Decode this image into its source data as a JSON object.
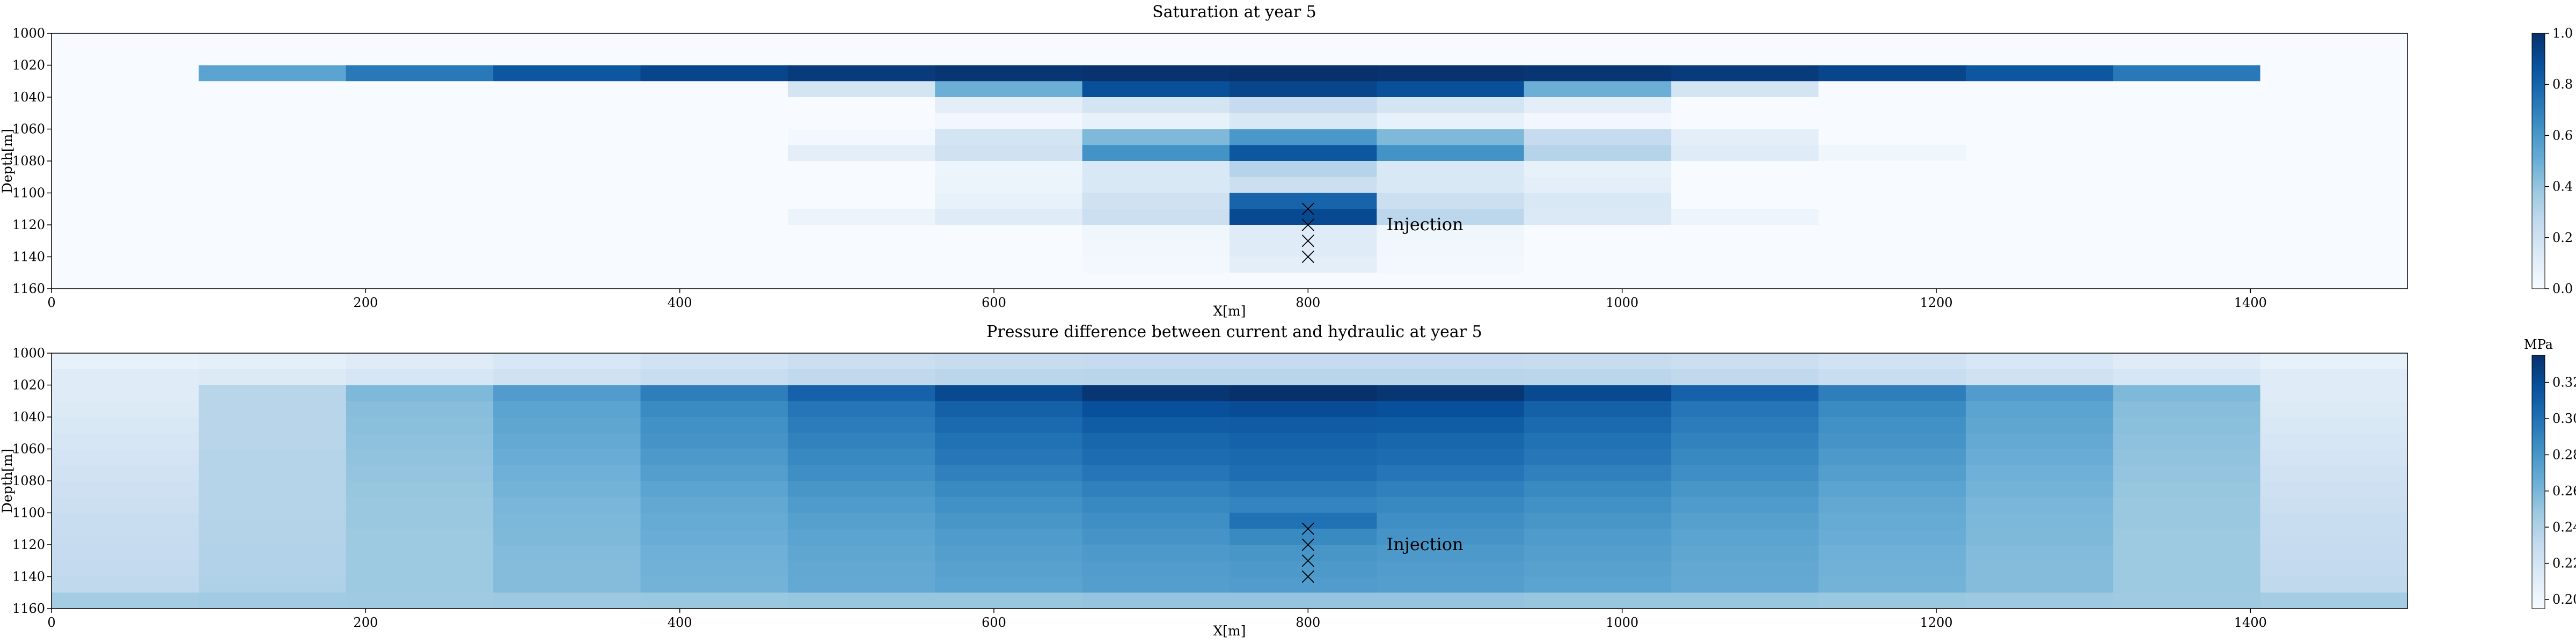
{
  "chart_data": [
    {
      "type": "heatmap",
      "title": "Saturation at year 5",
      "xlabel": "X[m]",
      "ylabel": "Depth[m]",
      "xlim": [
        0,
        1500
      ],
      "ylim": [
        1160,
        1000
      ],
      "xticks": [
        "0",
        "200",
        "400",
        "600",
        "800",
        "1000",
        "1200",
        "1400"
      ],
      "xtick_values": [
        0,
        200,
        400,
        600,
        800,
        1000,
        1200,
        1400
      ],
      "yticks": [
        "1000",
        "1020",
        "1040",
        "1060",
        "1080",
        "1100",
        "1120",
        "1140",
        "1160"
      ],
      "ytick_values": [
        1000,
        1020,
        1040,
        1060,
        1080,
        1100,
        1120,
        1140,
        1160
      ],
      "cell_width_m": 93.75,
      "cell_height_m": 10,
      "colorbar": {
        "min": 0.0,
        "max": 1.0,
        "unit": "",
        "ticks": [
          "0.0",
          "0.2",
          "0.4",
          "0.6",
          "0.8",
          "1.0"
        ],
        "tick_values": [
          0.0,
          0.2,
          0.4,
          0.6,
          0.8,
          1.0
        ]
      },
      "values": [
        [
          0.0,
          0.0,
          0.0,
          0.0,
          0.0,
          0.0,
          0.0,
          0.0,
          0.0,
          0.0,
          0.0,
          0.0,
          0.0,
          0.0,
          0.0,
          0.0
        ],
        [
          0.0,
          0.0,
          0.0,
          0.0,
          0.0,
          0.0,
          0.0,
          0.0,
          0.0,
          0.0,
          0.0,
          0.0,
          0.0,
          0.0,
          0.0,
          0.0
        ],
        [
          0.0,
          0.55,
          0.72,
          0.85,
          0.92,
          0.96,
          0.98,
          0.99,
          1.0,
          0.99,
          0.98,
          0.96,
          0.92,
          0.85,
          0.72,
          0.0
        ],
        [
          0.0,
          0.0,
          0.0,
          0.0,
          0.0,
          0.18,
          0.5,
          0.88,
          0.92,
          0.88,
          0.5,
          0.18,
          0.0,
          0.0,
          0.0,
          0.0
        ],
        [
          0.0,
          0.0,
          0.0,
          0.0,
          0.0,
          0.0,
          0.1,
          0.18,
          0.25,
          0.18,
          0.1,
          0.0,
          0.0,
          0.0,
          0.0,
          0.0
        ],
        [
          0.0,
          0.0,
          0.0,
          0.0,
          0.0,
          0.0,
          0.03,
          0.08,
          0.15,
          0.08,
          0.03,
          0.0,
          0.0,
          0.0,
          0.0,
          0.0
        ],
        [
          0.0,
          0.0,
          0.0,
          0.0,
          0.0,
          0.02,
          0.18,
          0.45,
          0.6,
          0.45,
          0.25,
          0.1,
          0.0,
          0.0,
          0.0,
          0.0
        ],
        [
          0.0,
          0.0,
          0.0,
          0.0,
          0.0,
          0.1,
          0.2,
          0.62,
          0.85,
          0.62,
          0.3,
          0.12,
          0.04,
          0.0,
          0.0,
          0.0
        ],
        [
          0.0,
          0.0,
          0.0,
          0.0,
          0.0,
          0.0,
          0.05,
          0.15,
          0.3,
          0.15,
          0.08,
          0.0,
          0.0,
          0.0,
          0.0,
          0.0
        ],
        [
          0.0,
          0.0,
          0.0,
          0.0,
          0.0,
          0.0,
          0.06,
          0.15,
          0.22,
          0.15,
          0.1,
          0.0,
          0.0,
          0.0,
          0.0,
          0.0
        ],
        [
          0.0,
          0.0,
          0.0,
          0.0,
          0.0,
          0.0,
          0.08,
          0.2,
          0.8,
          0.22,
          0.15,
          0.0,
          0.0,
          0.0,
          0.0,
          0.0
        ],
        [
          0.0,
          0.0,
          0.0,
          0.0,
          0.0,
          0.06,
          0.12,
          0.22,
          0.9,
          0.28,
          0.14,
          0.05,
          0.0,
          0.0,
          0.0,
          0.0
        ],
        [
          0.0,
          0.0,
          0.0,
          0.0,
          0.0,
          0.0,
          0.0,
          0.04,
          0.12,
          0.04,
          0.0,
          0.0,
          0.0,
          0.0,
          0.0,
          0.0
        ],
        [
          0.0,
          0.0,
          0.0,
          0.0,
          0.0,
          0.0,
          0.0,
          0.03,
          0.12,
          0.03,
          0.0,
          0.0,
          0.0,
          0.0,
          0.0,
          0.0
        ],
        [
          0.0,
          0.0,
          0.0,
          0.0,
          0.0,
          0.0,
          0.0,
          0.02,
          0.1,
          0.02,
          0.0,
          0.0,
          0.0,
          0.0,
          0.0,
          0.0
        ],
        [
          0.0,
          0.0,
          0.0,
          0.0,
          0.0,
          0.0,
          0.0,
          0.0,
          0.0,
          0.0,
          0.0,
          0.0,
          0.0,
          0.0,
          0.0,
          0.0
        ]
      ],
      "injection_points": [
        {
          "x": 800,
          "y": 1110
        },
        {
          "x": 800,
          "y": 1120
        },
        {
          "x": 800,
          "y": 1130
        },
        {
          "x": 800,
          "y": 1140
        }
      ],
      "annotation": {
        "text": "Injection",
        "x": 850,
        "y": 1120
      }
    },
    {
      "type": "heatmap",
      "title": "Pressure difference between current and hydraulic at year 5",
      "xlabel": "X[m]",
      "ylabel": "Depth[m]",
      "xlim": [
        0,
        1500
      ],
      "ylim": [
        1160,
        1000
      ],
      "xticks": [
        "0",
        "200",
        "400",
        "600",
        "800",
        "1000",
        "1200",
        "1400"
      ],
      "xtick_values": [
        0,
        200,
        400,
        600,
        800,
        1000,
        1200,
        1400
      ],
      "yticks": [
        "1000",
        "1020",
        "1040",
        "1060",
        "1080",
        "1100",
        "1120",
        "1140",
        "1160"
      ],
      "ytick_values": [
        1000,
        1020,
        1040,
        1060,
        1080,
        1100,
        1120,
        1140,
        1160
      ],
      "cell_width_m": 93.75,
      "cell_height_m": 10,
      "colorbar": {
        "min": 0.195,
        "max": 0.335,
        "unit": "MPa",
        "ticks": [
          "0.20",
          "0.22",
          "0.24",
          "0.26",
          "0.28",
          "0.30",
          "0.32"
        ],
        "tick_values": [
          0.2,
          0.22,
          0.24,
          0.26,
          0.28,
          0.3,
          0.32
        ]
      },
      "values": [
        [
          0.206,
          0.208,
          0.212,
          0.217,
          0.222,
          0.226,
          0.229,
          0.23,
          0.23,
          0.23,
          0.229,
          0.226,
          0.222,
          0.217,
          0.212,
          0.206
        ],
        [
          0.212,
          0.214,
          0.218,
          0.223,
          0.228,
          0.232,
          0.235,
          0.236,
          0.236,
          0.236,
          0.235,
          0.232,
          0.228,
          0.223,
          0.218,
          0.212
        ],
        [
          0.212,
          0.236,
          0.258,
          0.276,
          0.293,
          0.308,
          0.322,
          0.332,
          0.335,
          0.332,
          0.322,
          0.308,
          0.293,
          0.276,
          0.258,
          0.212
        ],
        [
          0.214,
          0.236,
          0.255,
          0.272,
          0.286,
          0.298,
          0.309,
          0.318,
          0.32,
          0.318,
          0.309,
          0.298,
          0.286,
          0.272,
          0.255,
          0.214
        ],
        [
          0.216,
          0.236,
          0.254,
          0.27,
          0.283,
          0.294,
          0.304,
          0.311,
          0.312,
          0.311,
          0.304,
          0.294,
          0.283,
          0.27,
          0.254,
          0.216
        ],
        [
          0.218,
          0.236,
          0.253,
          0.268,
          0.281,
          0.291,
          0.3,
          0.306,
          0.308,
          0.306,
          0.3,
          0.291,
          0.281,
          0.268,
          0.253,
          0.218
        ],
        [
          0.22,
          0.237,
          0.252,
          0.266,
          0.278,
          0.288,
          0.297,
          0.303,
          0.305,
          0.303,
          0.297,
          0.288,
          0.278,
          0.266,
          0.252,
          0.22
        ],
        [
          0.222,
          0.237,
          0.251,
          0.264,
          0.275,
          0.284,
          0.292,
          0.298,
          0.302,
          0.298,
          0.292,
          0.284,
          0.275,
          0.264,
          0.251,
          0.222
        ],
        [
          0.224,
          0.237,
          0.25,
          0.262,
          0.272,
          0.28,
          0.287,
          0.292,
          0.295,
          0.292,
          0.287,
          0.28,
          0.272,
          0.262,
          0.25,
          0.224
        ],
        [
          0.226,
          0.237,
          0.249,
          0.26,
          0.269,
          0.277,
          0.283,
          0.288,
          0.29,
          0.288,
          0.283,
          0.277,
          0.269,
          0.26,
          0.249,
          0.226
        ],
        [
          0.228,
          0.238,
          0.249,
          0.259,
          0.267,
          0.274,
          0.28,
          0.284,
          0.3,
          0.284,
          0.28,
          0.274,
          0.267,
          0.259,
          0.249,
          0.228
        ],
        [
          0.229,
          0.238,
          0.248,
          0.258,
          0.266,
          0.272,
          0.277,
          0.281,
          0.287,
          0.281,
          0.277,
          0.272,
          0.266,
          0.258,
          0.248,
          0.229
        ],
        [
          0.23,
          0.239,
          0.248,
          0.257,
          0.264,
          0.27,
          0.275,
          0.278,
          0.28,
          0.278,
          0.275,
          0.27,
          0.264,
          0.257,
          0.248,
          0.23
        ],
        [
          0.231,
          0.239,
          0.248,
          0.256,
          0.263,
          0.269,
          0.273,
          0.276,
          0.278,
          0.276,
          0.273,
          0.269,
          0.263,
          0.256,
          0.248,
          0.231
        ],
        [
          0.232,
          0.24,
          0.248,
          0.256,
          0.262,
          0.268,
          0.272,
          0.275,
          0.276,
          0.275,
          0.272,
          0.268,
          0.262,
          0.256,
          0.248,
          0.232
        ],
        [
          0.245,
          0.246,
          0.247,
          0.248,
          0.249,
          0.25,
          0.25,
          0.251,
          0.251,
          0.251,
          0.25,
          0.25,
          0.249,
          0.248,
          0.247,
          0.245
        ]
      ],
      "injection_points": [
        {
          "x": 800,
          "y": 1110
        },
        {
          "x": 800,
          "y": 1120
        },
        {
          "x": 800,
          "y": 1130
        },
        {
          "x": 800,
          "y": 1140
        }
      ],
      "annotation": {
        "text": "Injection",
        "x": 850,
        "y": 1120
      }
    }
  ]
}
